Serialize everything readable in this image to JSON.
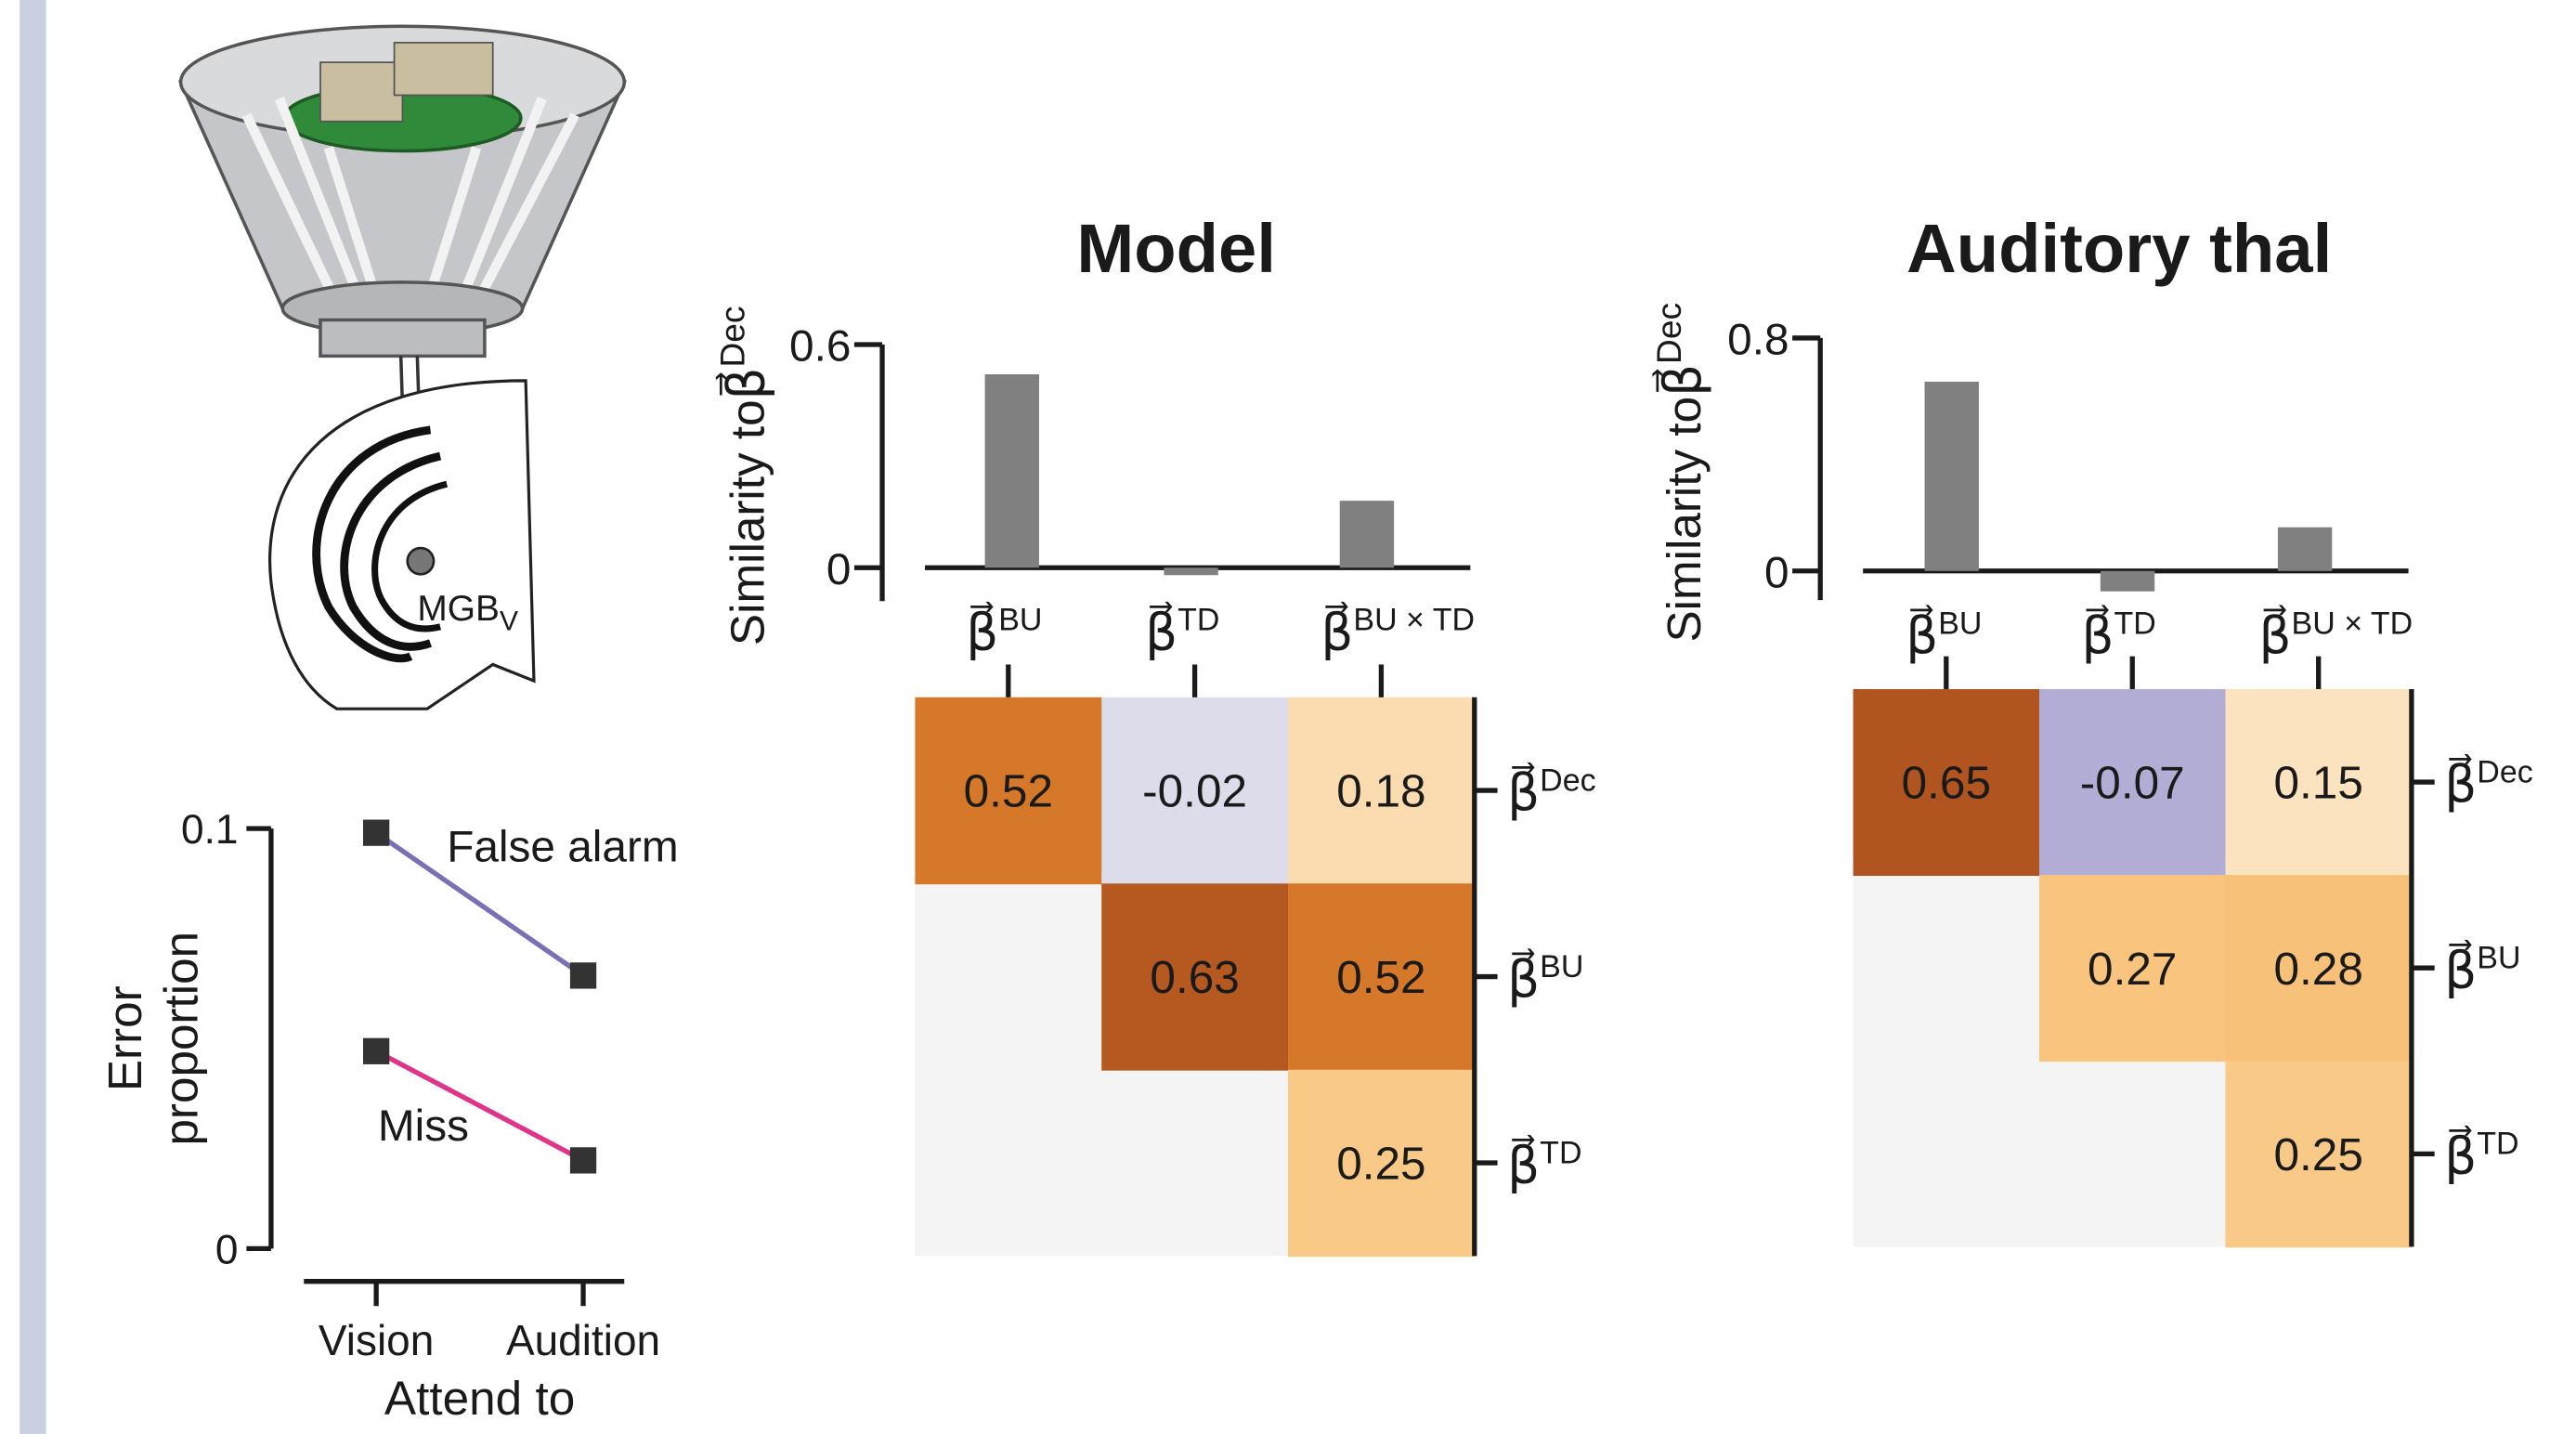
{
  "illustration": {
    "label": "MGB",
    "label_sub": "V"
  },
  "chart_data": [
    {
      "type": "line",
      "xlabel": "Attend to",
      "ylabel": [
        "Error",
        "proportion"
      ],
      "categories": [
        "Vision",
        "Audition"
      ],
      "series": [
        {
          "name": "False alarm",
          "color": "#7b6fb5",
          "values": [
            0.099,
            0.065
          ]
        },
        {
          "name": "Miss",
          "color": "#e0338a",
          "values": [
            0.047,
            0.021
          ]
        }
      ],
      "ylim": [
        0,
        0.1
      ],
      "yticks": [
        0,
        0.1
      ]
    },
    {
      "type": "bar",
      "title": "Model",
      "ylabel": "Similarity to",
      "ylabel_symbol": "β⃗",
      "ylabel_sup": "Dec",
      "symbol": "β⃗",
      "categories": [
        "BU",
        "TD",
        "BU × TD"
      ],
      "values": [
        0.52,
        -0.02,
        0.18
      ],
      "color": "#808080",
      "ylim": [
        -0.09,
        0.6
      ],
      "yticks": [
        0,
        0.6
      ]
    },
    {
      "type": "heatmap",
      "symbol": "β⃗",
      "columns": [
        "BU",
        "TD",
        "BU × TD"
      ],
      "rows": [
        "Dec",
        "BU",
        "TD"
      ],
      "values": [
        [
          0.52,
          -0.02,
          0.18
        ],
        [
          null,
          0.63,
          0.52
        ],
        [
          null,
          null,
          0.25
        ]
      ]
    },
    {
      "type": "bar",
      "title": "Auditory thal",
      "ylabel": "Similarity to",
      "ylabel_symbol": "β⃗",
      "ylabel_sup": "Dec",
      "symbol": "β⃗",
      "categories": [
        "BU",
        "TD",
        "BU × TD"
      ],
      "values": [
        0.65,
        -0.07,
        0.15
      ],
      "color": "#808080",
      "ylim": [
        -0.1,
        0.8
      ],
      "yticks": [
        0,
        0.8
      ]
    },
    {
      "type": "heatmap",
      "symbol": "β⃗",
      "columns": [
        "BU",
        "TD",
        "BU × TD"
      ],
      "rows": [
        "Dec",
        "BU",
        "TD"
      ],
      "values": [
        [
          0.65,
          -0.07,
          0.15
        ],
        [
          null,
          0.27,
          0.28
        ],
        [
          null,
          null,
          0.25
        ]
      ]
    }
  ]
}
